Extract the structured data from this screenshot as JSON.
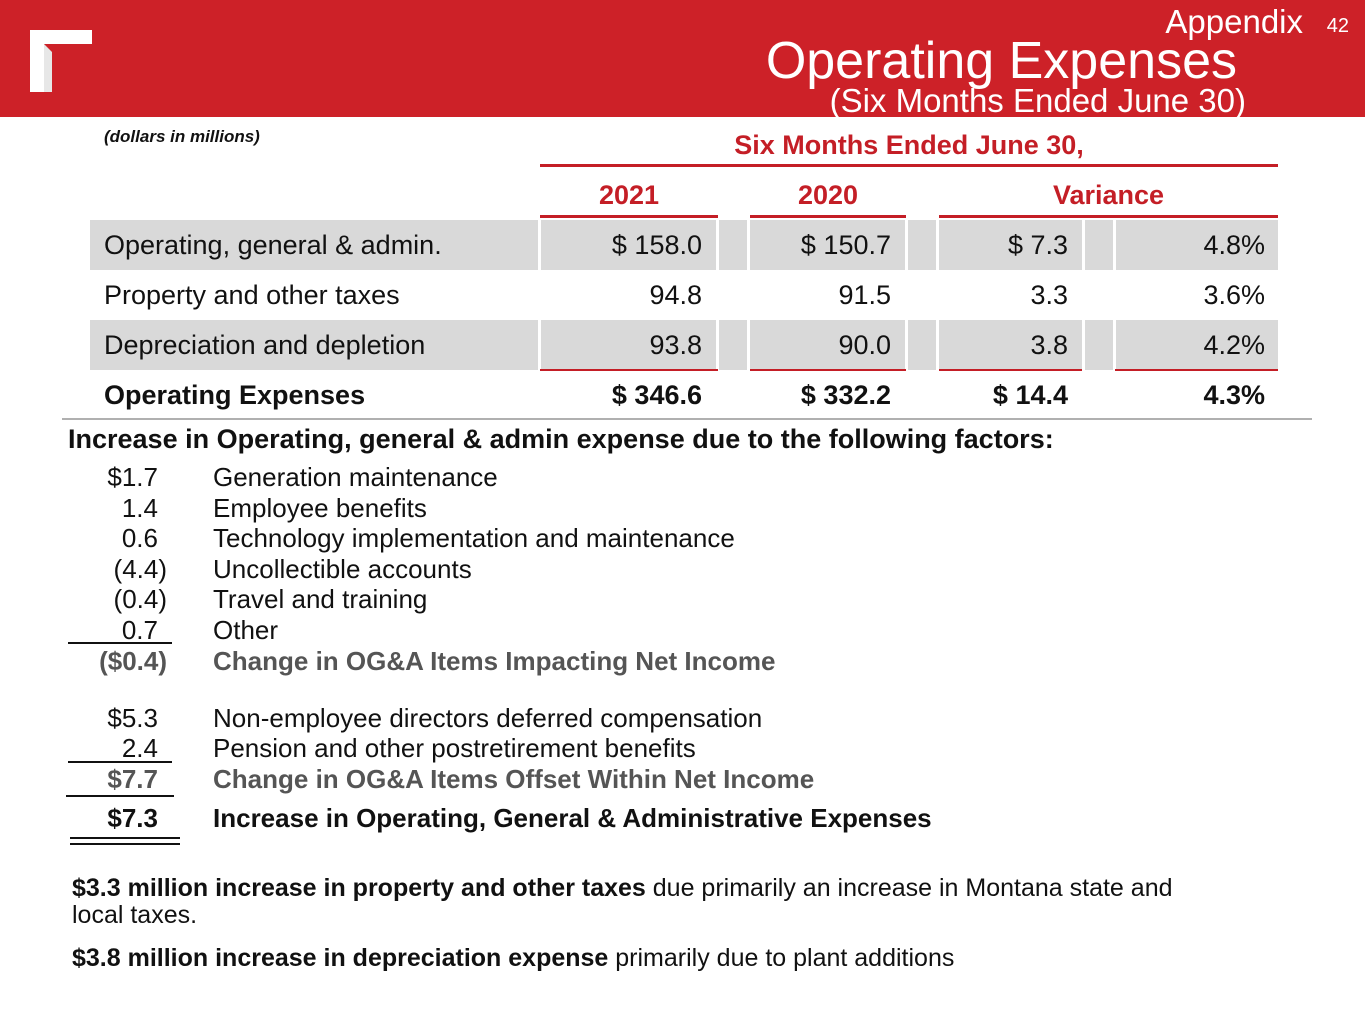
{
  "header": {
    "section": "Appendix",
    "page_number": "42",
    "title": "Operating Expenses",
    "subtitle": "(Six Months Ended June 30)",
    "banner_color": "#cd2128"
  },
  "table": {
    "units_note": "(dollars in millions)",
    "group_header": "Six Months Ended June 30,",
    "columns": [
      "2021",
      "2020",
      "Variance"
    ],
    "rows": [
      {
        "label": "Operating, general & admin.",
        "v2021": "$ 158.0",
        "v2020": "$ 150.7",
        "var_amt": "$ 7.3",
        "var_pct": "4.8%"
      },
      {
        "label": "Property and other taxes",
        "v2021": "94.8",
        "v2020": "91.5",
        "var_amt": "3.3",
        "var_pct": "3.6%"
      },
      {
        "label": "Depreciation and depletion",
        "v2021": "93.8",
        "v2020": "90.0",
        "var_amt": "3.8",
        "var_pct": "4.2%"
      },
      {
        "label": "Operating Expenses",
        "v2021": "$ 346.6",
        "v2020": "$ 332.2",
        "var_amt": "$ 14.4",
        "var_pct": "4.3%"
      }
    ]
  },
  "factors": {
    "heading": "Increase in Operating, general & admin expense due to the following factors:",
    "items": [
      {
        "amount": "$1.7",
        "desc": "Generation maintenance"
      },
      {
        "amount": "1.4",
        "desc": "Employee benefits"
      },
      {
        "amount": "0.6",
        "desc": "Technology implementation and maintenance"
      },
      {
        "amount": "(4.4)",
        "desc": "Uncollectible accounts"
      },
      {
        "amount": "(0.4)",
        "desc": "Travel and training"
      },
      {
        "amount": "0.7",
        "desc": "Other"
      },
      {
        "amount": "($0.4)",
        "desc": "Change in OG&A Items Impacting Net Income"
      },
      {
        "amount": "$5.3",
        "desc": "Non-employee directors deferred compensation"
      },
      {
        "amount": "2.4",
        "desc": "Pension and other postretirement benefits"
      },
      {
        "amount": "$7.7",
        "desc": "Change in OG&A Items Offset Within Net Income"
      },
      {
        "amount": "$7.3",
        "desc": "Increase in Operating, General & Administrative Expenses"
      }
    ]
  },
  "notes": {
    "taxes_bold": "$3.3 million increase in property and other taxes",
    "taxes_rest": " due primarily an increase in Montana state and local taxes.",
    "depr_bold": "$3.8 million increase in depreciation expense",
    "depr_rest": " primarily due to plant additions"
  }
}
